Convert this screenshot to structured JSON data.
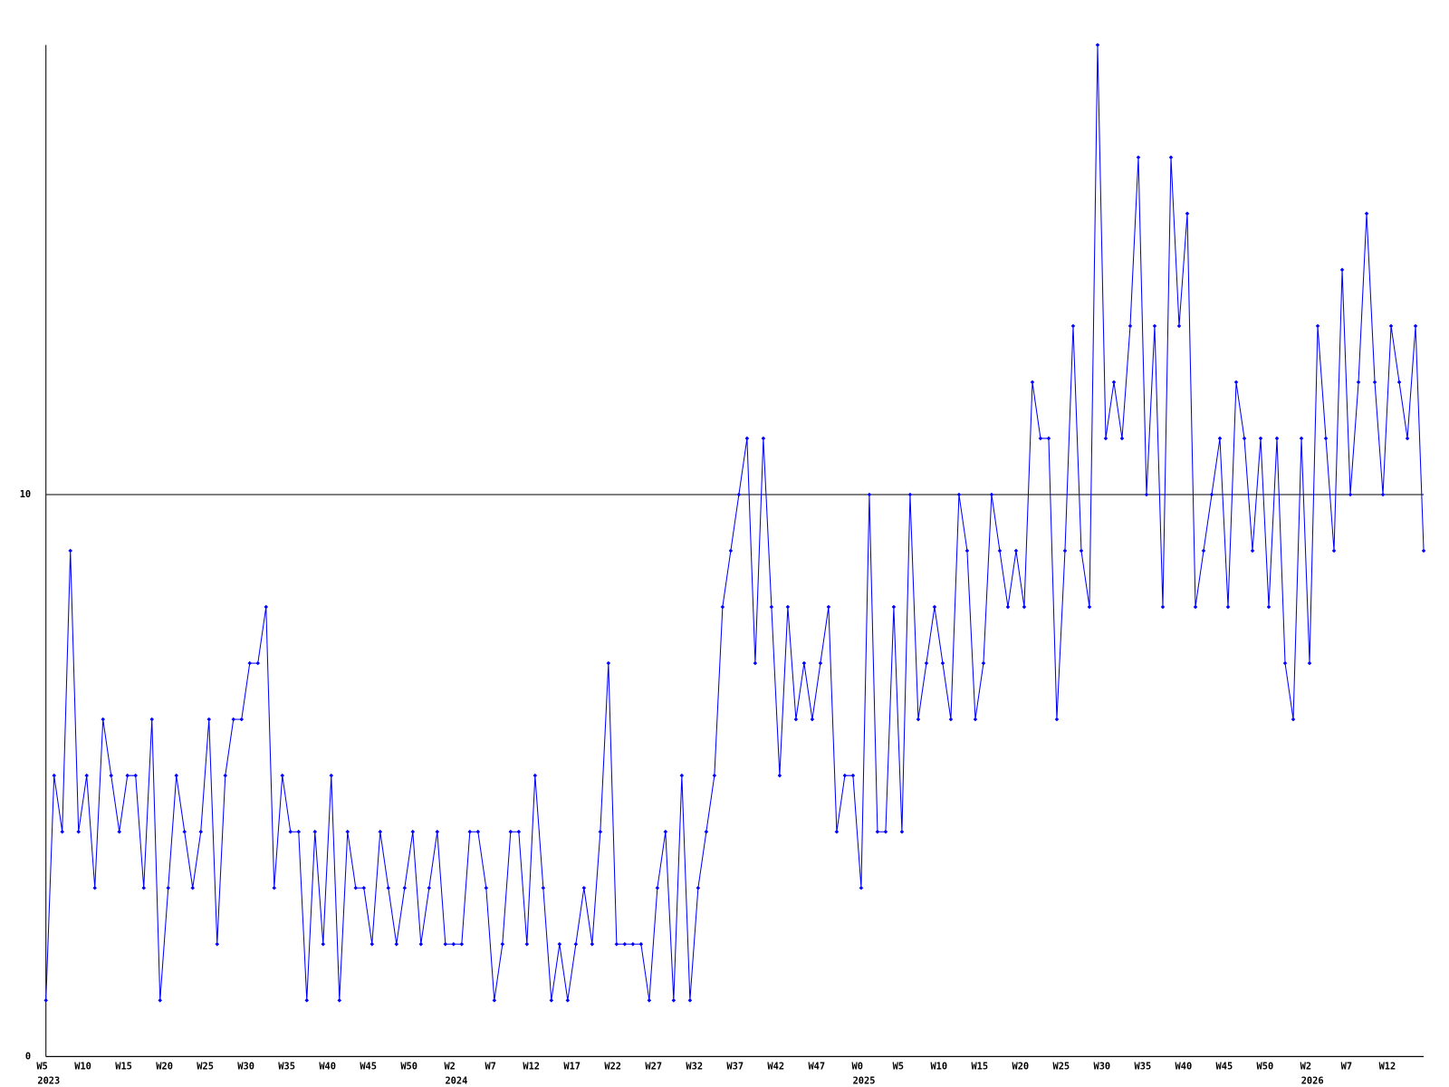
{
  "chart_data": {
    "type": "line",
    "categories": [
      "W5",
      null,
      null,
      null,
      null,
      "W10",
      null,
      null,
      null,
      null,
      "W15",
      null,
      null,
      null,
      null,
      "W20",
      null,
      null,
      null,
      null,
      "W25",
      null,
      null,
      null,
      null,
      "W30",
      null,
      null,
      null,
      null,
      "W35",
      null,
      null,
      null,
      null,
      "W40",
      null,
      null,
      null,
      null,
      "W45",
      null,
      null,
      null,
      null,
      "W50",
      null,
      null,
      null,
      null,
      "W2",
      null,
      null,
      null,
      null,
      "W7",
      null,
      null,
      null,
      null,
      "W12",
      null,
      null,
      null,
      null,
      "W17",
      null,
      null,
      null,
      null,
      "W22",
      null,
      null,
      null,
      null,
      "W27",
      null,
      null,
      null,
      null,
      "W32",
      null,
      null,
      null,
      null,
      "W37",
      null,
      null,
      null,
      null,
      "W42",
      null,
      null,
      null,
      null,
      "W47",
      null,
      null,
      null,
      null,
      "W0",
      null,
      null,
      null,
      null,
      "W5",
      null,
      null,
      null,
      null,
      "W10",
      null,
      null,
      null,
      null,
      "W15",
      null,
      null,
      null,
      null,
      "W20",
      null,
      null,
      null,
      null,
      "W25",
      null,
      null,
      null,
      null,
      "W30",
      null,
      null,
      null,
      null,
      "W35",
      null,
      null,
      null,
      null,
      "W40",
      null,
      null,
      null,
      null,
      "W45",
      null,
      null,
      null,
      null,
      "W50",
      null,
      null,
      null,
      null,
      "W2",
      null,
      null,
      null,
      null,
      "W7",
      null,
      null,
      null,
      null,
      "W12",
      null,
      null,
      null,
      null
    ],
    "years": [
      "2023",
      null,
      null,
      null,
      null,
      null,
      null,
      null,
      null,
      null,
      null,
      null,
      null,
      null,
      null,
      null,
      null,
      null,
      null,
      null,
      null,
      null,
      null,
      null,
      null,
      null,
      null,
      null,
      null,
      null,
      null,
      null,
      null,
      null,
      null,
      null,
      null,
      null,
      null,
      null,
      null,
      null,
      null,
      null,
      null,
      null,
      null,
      null,
      null,
      null,
      "2024",
      null,
      null,
      null,
      null,
      null,
      null,
      null,
      null,
      null,
      null,
      null,
      null,
      null,
      null,
      null,
      null,
      null,
      null,
      null,
      null,
      null,
      null,
      null,
      null,
      null,
      null,
      null,
      null,
      null,
      null,
      null,
      null,
      null,
      null,
      null,
      null,
      null,
      null,
      null,
      null,
      null,
      null,
      null,
      null,
      null,
      null,
      null,
      null,
      null,
      "2025",
      null,
      null,
      null,
      null,
      null,
      null,
      null,
      null,
      null,
      null,
      null,
      null,
      null,
      null,
      null,
      null,
      null,
      null,
      null,
      null,
      null,
      null,
      null,
      null,
      null,
      null,
      null,
      null,
      null,
      null,
      null,
      null,
      null,
      null,
      null,
      null,
      null,
      null,
      null,
      null,
      null,
      null,
      null,
      null,
      null,
      null,
      null,
      null,
      null,
      null,
      null,
      null,
      null,
      null,
      "2026",
      null,
      null,
      null,
      null,
      null,
      null,
      null,
      null,
      null,
      null,
      null,
      null,
      null,
      null
    ],
    "series": [
      {
        "color": "#0000ff",
        "values": [
          1,
          5,
          4,
          9,
          4,
          5,
          3,
          6,
          5,
          4,
          5,
          5,
          3,
          6,
          1,
          3,
          5,
          4,
          3,
          4,
          6,
          2,
          5,
          6,
          6,
          7,
          7,
          8,
          3,
          5,
          4,
          4,
          1,
          4,
          2,
          5,
          1,
          4,
          3,
          3,
          2,
          4,
          3,
          2,
          3,
          4,
          2,
          3,
          4,
          2,
          2,
          2,
          4,
          4,
          3,
          1,
          2,
          4,
          4,
          2,
          5,
          3,
          1,
          2,
          1,
          2,
          3,
          2,
          4,
          7,
          2,
          2,
          2,
          2,
          1,
          3,
          4,
          1,
          5,
          1,
          3,
          4,
          5,
          8,
          9,
          10,
          11,
          7,
          11,
          8,
          5,
          8,
          6,
          7,
          6,
          7,
          8,
          4,
          5,
          5,
          3,
          10,
          4,
          4,
          8,
          4,
          10,
          6,
          7,
          8,
          7,
          6,
          10,
          9,
          6,
          7,
          10,
          9,
          8,
          9,
          8,
          12,
          11,
          11,
          6,
          9,
          13,
          9,
          8,
          18,
          11,
          12,
          11,
          13,
          16,
          10,
          13,
          8,
          16,
          13,
          15,
          8,
          9,
          10,
          11,
          8,
          12,
          11,
          9,
          11,
          8,
          11,
          7,
          6,
          11,
          7,
          13,
          11,
          9,
          14,
          10,
          12,
          15,
          12,
          10,
          13,
          12,
          11,
          13,
          9
        ]
      }
    ],
    "ylim": [
      0,
      18
    ],
    "yticks": [
      0,
      10
    ],
    "grid": true
  }
}
